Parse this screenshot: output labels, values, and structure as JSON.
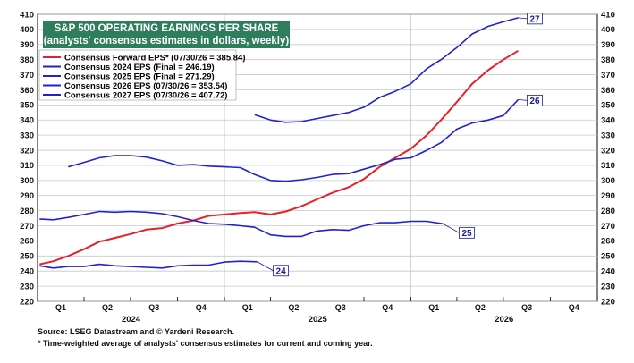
{
  "chart_data": {
    "type": "line",
    "title": "S&P 500 OPERATING EARNINGS PER SHARE",
    "subtitle": "(analysts' consensus estimates in dollars, weekly)",
    "ylim": [
      220,
      410
    ],
    "yticks": [
      220,
      230,
      240,
      250,
      260,
      270,
      280,
      290,
      300,
      310,
      320,
      330,
      340,
      350,
      360,
      370,
      380,
      390,
      400,
      410
    ],
    "xlim": [
      "2024-01-01",
      "2027-01-01"
    ],
    "quarter_labels": [
      "Q1",
      "Q2",
      "Q3",
      "Q4",
      "Q1",
      "Q2",
      "Q3",
      "Q4",
      "Q1",
      "Q2",
      "Q3",
      "Q4"
    ],
    "year_labels": [
      "2024",
      "2025",
      "2026"
    ],
    "grid": true,
    "legend": "top-left",
    "series": [
      {
        "name": "Consensus Forward EPS* (07/30/26 = 385.84)",
        "color": "#e8202a",
        "end_label": "",
        "points": [
          [
            "2024-01-05",
            244.5
          ],
          [
            "2024-02-01",
            246.5
          ],
          [
            "2024-03-01",
            250
          ],
          [
            "2024-04-01",
            254.5
          ],
          [
            "2024-05-01",
            259.5
          ],
          [
            "2024-06-01",
            262
          ],
          [
            "2024-07-01",
            264.5
          ],
          [
            "2024-08-01",
            267.5
          ],
          [
            "2024-09-01",
            268.5
          ],
          [
            "2024-10-01",
            271.5
          ],
          [
            "2024-11-01",
            273.5
          ],
          [
            "2024-12-01",
            276.5
          ],
          [
            "2025-01-01",
            277.5
          ],
          [
            "2025-02-01",
            278.5
          ],
          [
            "2025-03-01",
            279
          ],
          [
            "2025-04-01",
            277.5
          ],
          [
            "2025-05-01",
            279.5
          ],
          [
            "2025-06-01",
            283
          ],
          [
            "2025-07-01",
            287.5
          ],
          [
            "2025-08-01",
            292
          ],
          [
            "2025-09-01",
            295.5
          ],
          [
            "2025-10-01",
            301
          ],
          [
            "2025-11-01",
            309
          ],
          [
            "2025-12-01",
            315
          ],
          [
            "2026-01-01",
            321
          ],
          [
            "2026-02-01",
            330
          ],
          [
            "2026-03-01",
            340
          ],
          [
            "2026-04-01",
            352
          ],
          [
            "2026-05-01",
            364
          ],
          [
            "2026-06-01",
            373
          ],
          [
            "2026-07-01",
            380
          ],
          [
            "2026-07-30",
            385.84
          ]
        ]
      },
      {
        "name": "Consensus 2024 EPS (Final = 246.19)",
        "color": "#2222cc",
        "end_label": "24",
        "points": [
          [
            "2024-01-05",
            243.5
          ],
          [
            "2024-02-01",
            242
          ],
          [
            "2024-03-01",
            243
          ],
          [
            "2024-04-01",
            243
          ],
          [
            "2024-05-01",
            244.5
          ],
          [
            "2024-06-01",
            243.5
          ],
          [
            "2024-07-01",
            243
          ],
          [
            "2024-08-01",
            242.5
          ],
          [
            "2024-09-01",
            242
          ],
          [
            "2024-10-01",
            243.5
          ],
          [
            "2024-11-01",
            244
          ],
          [
            "2024-12-01",
            244
          ],
          [
            "2025-01-01",
            246
          ],
          [
            "2025-02-01",
            246.5
          ],
          [
            "2025-03-06",
            246.19
          ]
        ]
      },
      {
        "name": "Consensus 2025 EPS (Final = 271.29)",
        "color": "#2222cc",
        "end_label": "25",
        "points": [
          [
            "2024-01-05",
            274.5
          ],
          [
            "2024-02-01",
            274
          ],
          [
            "2024-03-01",
            275.5
          ],
          [
            "2024-04-01",
            277.5
          ],
          [
            "2024-05-01",
            279.5
          ],
          [
            "2024-06-01",
            279
          ],
          [
            "2024-07-01",
            279.5
          ],
          [
            "2024-08-01",
            279
          ],
          [
            "2024-09-01",
            278
          ],
          [
            "2024-10-01",
            276
          ],
          [
            "2024-11-01",
            273.5
          ],
          [
            "2024-12-01",
            271.5
          ],
          [
            "2025-01-01",
            271
          ],
          [
            "2025-02-01",
            270
          ],
          [
            "2025-03-01",
            269
          ],
          [
            "2025-04-01",
            264
          ],
          [
            "2025-05-01",
            263
          ],
          [
            "2025-06-01",
            263
          ],
          [
            "2025-07-01",
            266.5
          ],
          [
            "2025-08-01",
            267.5
          ],
          [
            "2025-09-01",
            267
          ],
          [
            "2025-10-01",
            270
          ],
          [
            "2025-11-01",
            272
          ],
          [
            "2025-12-01",
            272
          ],
          [
            "2026-01-01",
            273
          ],
          [
            "2026-02-01",
            273
          ],
          [
            "2026-03-05",
            271.29
          ]
        ]
      },
      {
        "name": "Consensus 2026 EPS (07/30/26 = 353.54)",
        "color": "#2222cc",
        "end_label": "26",
        "points": [
          [
            "2024-03-01",
            309
          ],
          [
            "2024-04-01",
            312
          ],
          [
            "2024-05-01",
            315
          ],
          [
            "2024-06-01",
            316.5
          ],
          [
            "2024-07-01",
            316.5
          ],
          [
            "2024-08-01",
            315.5
          ],
          [
            "2024-09-01",
            313
          ],
          [
            "2024-10-01",
            310
          ],
          [
            "2024-11-01",
            310.5
          ],
          [
            "2024-12-01",
            309.5
          ],
          [
            "2025-01-01",
            309
          ],
          [
            "2025-02-01",
            308.5
          ],
          [
            "2025-03-01",
            304
          ],
          [
            "2025-04-01",
            300
          ],
          [
            "2025-05-01",
            299.5
          ],
          [
            "2025-06-01",
            300.5
          ],
          [
            "2025-07-01",
            302
          ],
          [
            "2025-08-01",
            304
          ],
          [
            "2025-09-01",
            304.5
          ],
          [
            "2025-10-01",
            307.5
          ],
          [
            "2025-11-01",
            310.5
          ],
          [
            "2025-12-01",
            314
          ],
          [
            "2026-01-01",
            315
          ],
          [
            "2026-02-01",
            320
          ],
          [
            "2026-03-01",
            325
          ],
          [
            "2026-04-01",
            334
          ],
          [
            "2026-05-01",
            338
          ],
          [
            "2026-06-01",
            340
          ],
          [
            "2026-07-01",
            343
          ],
          [
            "2026-07-30",
            353.54
          ]
        ]
      },
      {
        "name": "Consensus 2027 EPS (07/30/26 = 407.72)",
        "color": "#2222cc",
        "end_label": "27",
        "points": [
          [
            "2025-03-01",
            343.5
          ],
          [
            "2025-04-01",
            340
          ],
          [
            "2025-05-01",
            338.5
          ],
          [
            "2025-06-01",
            339
          ],
          [
            "2025-07-01",
            341
          ],
          [
            "2025-08-01",
            343
          ],
          [
            "2025-09-01",
            345
          ],
          [
            "2025-10-01",
            348.5
          ],
          [
            "2025-11-01",
            355
          ],
          [
            "2025-12-01",
            359
          ],
          [
            "2026-01-01",
            364
          ],
          [
            "2026-02-01",
            374
          ],
          [
            "2026-03-01",
            380
          ],
          [
            "2026-04-01",
            388
          ],
          [
            "2026-05-01",
            397
          ],
          [
            "2026-06-01",
            402
          ],
          [
            "2026-07-01",
            405
          ],
          [
            "2026-07-30",
            407.72
          ]
        ]
      }
    ]
  },
  "footer": {
    "source": "Source: LSEG Datastream and © Yardeni Research.",
    "note": "* Time-weighted average of analysts' consensus estimates for current and coming year."
  }
}
